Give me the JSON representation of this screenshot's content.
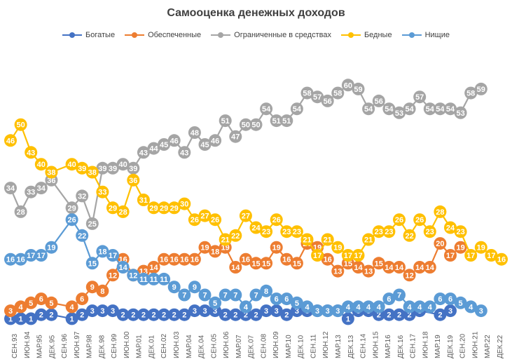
{
  "chart_data": {
    "type": "line",
    "title": "Самооценка денежных доходов",
    "xlabel": "",
    "ylabel": "",
    "ylim": [
      0,
      62
    ],
    "grid": false,
    "legend": "top",
    "x_labels": [
      "СЕН.93",
      "ИЮН.94",
      "МАР.95",
      "ДЕК.95",
      "СЕН.96",
      "ИЮН.97",
      "МАР.98",
      "ДЕК.98",
      "СЕН.99",
      "ИЮН.00",
      "МАР.01",
      "ДЕК.01",
      "СЕН.02",
      "ИЮН.03",
      "МАР.04",
      "ДЕК.04",
      "СЕН.05",
      "ИЮН.06",
      "МАР.07",
      "ДЕК.07",
      "СЕН.08",
      "ИЮН.09",
      "МАР.10",
      "ДЕК.10",
      "СЕН.11",
      "ИЮН.12",
      "МАР.13",
      "ДЕК.13",
      "СЕН.14",
      "ИЮН.15",
      "МАР.16",
      "ДЕК.16",
      "СЕН.17",
      "ИЮН.18",
      "МАР.19",
      "ДЕК.19",
      "СЕН.20",
      "ИЮН.21",
      "МАР.22",
      "ДЕК.22"
    ],
    "series": [
      {
        "name": "Богатые",
        "color": "#4472C4",
        "points": [
          [
            0,
            1
          ],
          [
            1,
            1
          ],
          [
            2,
            1
          ],
          [
            3,
            2
          ],
          [
            4,
            2
          ],
          [
            6,
            1
          ],
          [
            7,
            2
          ],
          [
            8,
            3
          ],
          [
            9,
            3
          ],
          [
            10,
            3
          ],
          [
            11,
            2
          ],
          [
            12,
            2
          ],
          [
            13,
            2
          ],
          [
            14,
            2
          ],
          [
            15,
            2
          ],
          [
            16,
            2
          ],
          [
            17,
            2
          ],
          [
            18,
            3
          ],
          [
            19,
            3
          ],
          [
            20,
            3
          ],
          [
            21,
            2
          ],
          [
            22,
            2
          ],
          [
            23,
            2
          ],
          [
            24,
            2
          ],
          [
            25,
            3
          ],
          [
            26,
            3
          ],
          [
            27,
            2
          ],
          [
            28,
            3
          ],
          [
            29,
            3
          ],
          [
            30,
            3
          ],
          [
            31,
            3
          ],
          [
            32,
            3
          ],
          [
            33,
            1
          ],
          [
            34,
            3
          ],
          [
            35,
            3
          ],
          [
            36,
            2
          ],
          [
            37,
            2
          ],
          [
            38,
            2
          ],
          [
            39,
            2
          ],
          [
            40,
            3
          ],
          [
            42,
            2
          ],
          [
            43,
            3
          ]
        ]
      },
      {
        "name": "Обеспеченные",
        "color": "#ED7D31",
        "points": [
          [
            0,
            3
          ],
          [
            1,
            4
          ],
          [
            2,
            5
          ],
          [
            3,
            6
          ],
          [
            4,
            5
          ],
          [
            6,
            4
          ],
          [
            7,
            6
          ],
          [
            8,
            9
          ],
          [
            9,
            8
          ],
          [
            10,
            12
          ],
          [
            11,
            16
          ],
          [
            12,
            12
          ],
          [
            13,
            13
          ],
          [
            14,
            14
          ],
          [
            15,
            16
          ],
          [
            16,
            16
          ],
          [
            17,
            16
          ],
          [
            18,
            16
          ],
          [
            19,
            19
          ],
          [
            20,
            18
          ],
          [
            21,
            19
          ],
          [
            22,
            14
          ],
          [
            23,
            16
          ],
          [
            24,
            15
          ],
          [
            25,
            15
          ],
          [
            26,
            19
          ],
          [
            27,
            16
          ],
          [
            28,
            15
          ],
          [
            29,
            20
          ],
          [
            30,
            19
          ],
          [
            31,
            16
          ],
          [
            32,
            13
          ],
          [
            33,
            15
          ],
          [
            34,
            14
          ],
          [
            35,
            13
          ],
          [
            36,
            15
          ],
          [
            37,
            14
          ],
          [
            38,
            14
          ],
          [
            39,
            12
          ],
          [
            40,
            14
          ],
          [
            41,
            14
          ],
          [
            42,
            20
          ],
          [
            43,
            17
          ],
          [
            44,
            19
          ]
        ]
      },
      {
        "name": "Ограниченные в средствах",
        "color": "#A5A5A5",
        "points": [
          [
            0,
            34
          ],
          [
            1,
            28
          ],
          [
            2,
            33
          ],
          [
            3,
            34
          ],
          [
            4,
            36
          ],
          [
            6,
            29
          ],
          [
            7,
            32
          ],
          [
            8,
            25
          ],
          [
            9,
            39
          ],
          [
            10,
            39
          ],
          [
            11,
            40
          ],
          [
            12,
            39
          ],
          [
            13,
            43
          ],
          [
            14,
            44
          ],
          [
            15,
            45
          ],
          [
            16,
            46
          ],
          [
            17,
            43
          ],
          [
            18,
            48
          ],
          [
            19,
            45
          ],
          [
            20,
            46
          ],
          [
            21,
            51
          ],
          [
            22,
            47
          ],
          [
            23,
            50
          ],
          [
            24,
            50
          ],
          [
            25,
            54
          ],
          [
            26,
            51
          ],
          [
            27,
            51
          ],
          [
            28,
            54
          ],
          [
            29,
            58
          ],
          [
            30,
            57
          ],
          [
            31,
            56
          ],
          [
            32,
            58
          ],
          [
            33,
            60
          ],
          [
            34,
            59
          ],
          [
            35,
            54
          ],
          [
            36,
            56
          ],
          [
            37,
            54
          ],
          [
            38,
            53
          ],
          [
            39,
            54
          ],
          [
            40,
            57
          ],
          [
            41,
            54
          ],
          [
            42,
            54
          ],
          [
            43,
            54
          ],
          [
            44,
            53
          ],
          [
            45,
            58
          ],
          [
            46,
            59
          ]
        ]
      },
      {
        "name": "Бедные",
        "color": "#FFC000",
        "points": [
          [
            0,
            46
          ],
          [
            1,
            50
          ],
          [
            2,
            43
          ],
          [
            3,
            40
          ],
          [
            4,
            38
          ],
          [
            6,
            40
          ],
          [
            7,
            39
          ],
          [
            8,
            38
          ],
          [
            9,
            33
          ],
          [
            10,
            29
          ],
          [
            11,
            28
          ],
          [
            12,
            36
          ],
          [
            13,
            31
          ],
          [
            14,
            29
          ],
          [
            15,
            29
          ],
          [
            16,
            29
          ],
          [
            17,
            30
          ],
          [
            18,
            26
          ],
          [
            19,
            27
          ],
          [
            20,
            26
          ],
          [
            21,
            21
          ],
          [
            22,
            22
          ],
          [
            23,
            27
          ],
          [
            24,
            24
          ],
          [
            25,
            23
          ],
          [
            26,
            26
          ],
          [
            27,
            23
          ],
          [
            28,
            23
          ],
          [
            29,
            21
          ],
          [
            30,
            17
          ],
          [
            31,
            21
          ],
          [
            32,
            19
          ],
          [
            33,
            17
          ],
          [
            34,
            17
          ],
          [
            35,
            21
          ],
          [
            36,
            23
          ],
          [
            37,
            23
          ],
          [
            38,
            26
          ],
          [
            39,
            22
          ],
          [
            40,
            26
          ],
          [
            41,
            23
          ],
          [
            42,
            28
          ],
          [
            43,
            24
          ],
          [
            44,
            23
          ],
          [
            45,
            17
          ],
          [
            46,
            19
          ],
          [
            47,
            17
          ],
          [
            48,
            16
          ]
        ]
      },
      {
        "name": "Нищие",
        "color": "#5B9BD5",
        "points": [
          [
            0,
            16
          ],
          [
            1,
            16
          ],
          [
            2,
            17
          ],
          [
            3,
            17
          ],
          [
            4,
            19
          ],
          [
            6,
            26
          ],
          [
            7,
            22
          ],
          [
            8,
            15
          ],
          [
            9,
            18
          ],
          [
            10,
            17
          ],
          [
            11,
            14
          ],
          [
            12,
            12
          ],
          [
            13,
            11
          ],
          [
            14,
            11
          ],
          [
            15,
            11
          ],
          [
            16,
            9
          ],
          [
            17,
            7
          ],
          [
            18,
            9
          ],
          [
            19,
            7
          ],
          [
            20,
            5
          ],
          [
            21,
            7
          ],
          [
            22,
            7
          ],
          [
            23,
            4
          ],
          [
            24,
            7
          ],
          [
            25,
            8
          ],
          [
            26,
            6
          ],
          [
            27,
            6
          ],
          [
            28,
            5
          ],
          [
            29,
            4
          ],
          [
            30,
            3
          ],
          [
            31,
            3
          ],
          [
            32,
            3
          ],
          [
            33,
            4
          ],
          [
            34,
            4
          ],
          [
            35,
            4
          ],
          [
            36,
            4
          ],
          [
            37,
            6
          ],
          [
            38,
            7
          ],
          [
            39,
            4
          ],
          [
            40,
            4
          ],
          [
            41,
            4
          ],
          [
            42,
            6
          ],
          [
            43,
            6
          ],
          [
            44,
            5
          ],
          [
            45,
            4
          ],
          [
            46,
            3
          ]
        ]
      }
    ]
  }
}
